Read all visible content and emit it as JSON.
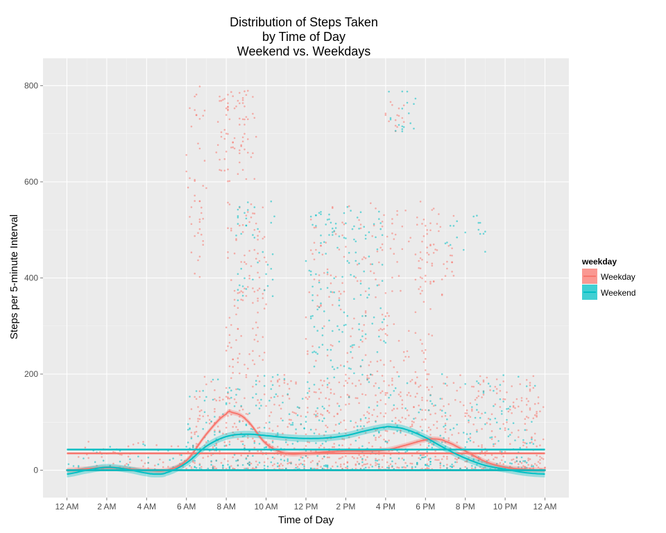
{
  "chart_data": {
    "type": "scatter",
    "title_lines": [
      "Distribution of Steps Taken",
      "by Time of Day",
      "Weekend vs. Weekdays"
    ],
    "xlabel": "Time of Day",
    "ylabel": "Steps per 5-minute Interval",
    "x_ticks": [
      "12 AM",
      "2 AM",
      "4 AM",
      "6 AM",
      "8 AM",
      "10 AM",
      "12 PM",
      "2 PM",
      "4 PM",
      "6 PM",
      "8 PM",
      "10 PM",
      "12 AM"
    ],
    "x_tick_hours": [
      0,
      2,
      4,
      6,
      8,
      10,
      12,
      14,
      16,
      18,
      20,
      22,
      24
    ],
    "xlim": [
      -1.2,
      25.2
    ],
    "y_ticks": [
      "0",
      "200",
      "400",
      "600",
      "800"
    ],
    "y_tick_values": [
      0,
      200,
      400,
      600,
      800
    ],
    "ylim": [
      -57,
      857
    ],
    "grid": true,
    "legend": {
      "title": "weekday",
      "position": "right",
      "entries": [
        {
          "label": "Weekday",
          "color": "#F8766D"
        },
        {
          "label": "Weekend",
          "color": "#00BFC4"
        }
      ]
    },
    "series": [
      {
        "name": "Weekday",
        "color": "#F8766D",
        "mean_line": 35,
        "smooth_hours": [
          0,
          1,
          2,
          3,
          4,
          5,
          6,
          7,
          8,
          8.3,
          9,
          10,
          11,
          12,
          13,
          14,
          15,
          16,
          17,
          18,
          18.5,
          19,
          20,
          21,
          22,
          23,
          24
        ],
        "smooth_values": [
          0,
          3,
          5,
          3,
          0,
          0,
          20,
          75,
          117,
          120,
          105,
          55,
          35,
          35,
          38,
          40,
          40,
          42,
          52,
          63,
          65,
          60,
          40,
          18,
          6,
          2,
          0
        ],
        "band_halfwidth": 5
      },
      {
        "name": "Weekend",
        "color": "#00BFC4",
        "mean_line": 43,
        "smooth_hours": [
          0,
          1,
          2,
          3,
          4,
          4.5,
          5,
          6,
          7,
          8,
          9,
          10,
          11,
          12,
          13,
          14,
          15,
          16,
          16.3,
          17,
          18,
          19,
          20,
          21,
          22,
          23,
          24
        ],
        "smooth_values": [
          -8,
          0,
          6,
          2,
          -6,
          -8,
          -5,
          15,
          50,
          70,
          75,
          72,
          68,
          66,
          67,
          72,
          82,
          90,
          90,
          85,
          68,
          45,
          25,
          10,
          2,
          -5,
          -8
        ],
        "band_halfwidth": 7
      }
    ],
    "point_clouds": [
      {
        "series": "Weekday",
        "x_range": [
          6,
          7
        ],
        "y_range": [
          400,
          800
        ],
        "count": 45
      },
      {
        "series": "Weekday",
        "x_range": [
          7.5,
          9.5
        ],
        "y_range": [
          600,
          790
        ],
        "count": 80
      },
      {
        "series": "Weekday",
        "x_range": [
          8,
          10
        ],
        "y_range": [
          200,
          560
        ],
        "count": 110
      },
      {
        "series": "Weekday",
        "x_range": [
          12,
          18.5
        ],
        "y_range": [
          100,
          560
        ],
        "count": 250
      },
      {
        "series": "Weekday",
        "x_range": [
          16,
          17
        ],
        "y_range": [
          700,
          770
        ],
        "count": 15
      },
      {
        "series": "Weekday",
        "x_range": [
          17.5,
          19.5
        ],
        "y_range": [
          350,
          540
        ],
        "count": 45
      },
      {
        "series": "Weekday",
        "x_range": [
          6,
          24
        ],
        "y_range": [
          0,
          200
        ],
        "count": 900
      },
      {
        "series": "Weekday",
        "x_range": [
          0,
          6
        ],
        "y_range": [
          0,
          60
        ],
        "count": 60
      },
      {
        "series": "Weekend",
        "x_range": [
          8.5,
          10.5
        ],
        "y_range": [
          350,
          560
        ],
        "count": 40
      },
      {
        "series": "Weekend",
        "x_range": [
          12,
          16
        ],
        "y_range": [
          200,
          550
        ],
        "count": 150
      },
      {
        "series": "Weekend",
        "x_range": [
          16,
          17.5
        ],
        "y_range": [
          700,
          790
        ],
        "count": 18
      },
      {
        "series": "Weekend",
        "x_range": [
          19,
          21
        ],
        "y_range": [
          450,
          530
        ],
        "count": 18
      },
      {
        "series": "Weekend",
        "x_range": [
          6,
          23.5
        ],
        "y_range": [
          0,
          200
        ],
        "count": 500
      },
      {
        "series": "Weekend",
        "x_range": [
          0,
          6
        ],
        "y_range": [
          0,
          60
        ],
        "count": 40
      }
    ]
  }
}
